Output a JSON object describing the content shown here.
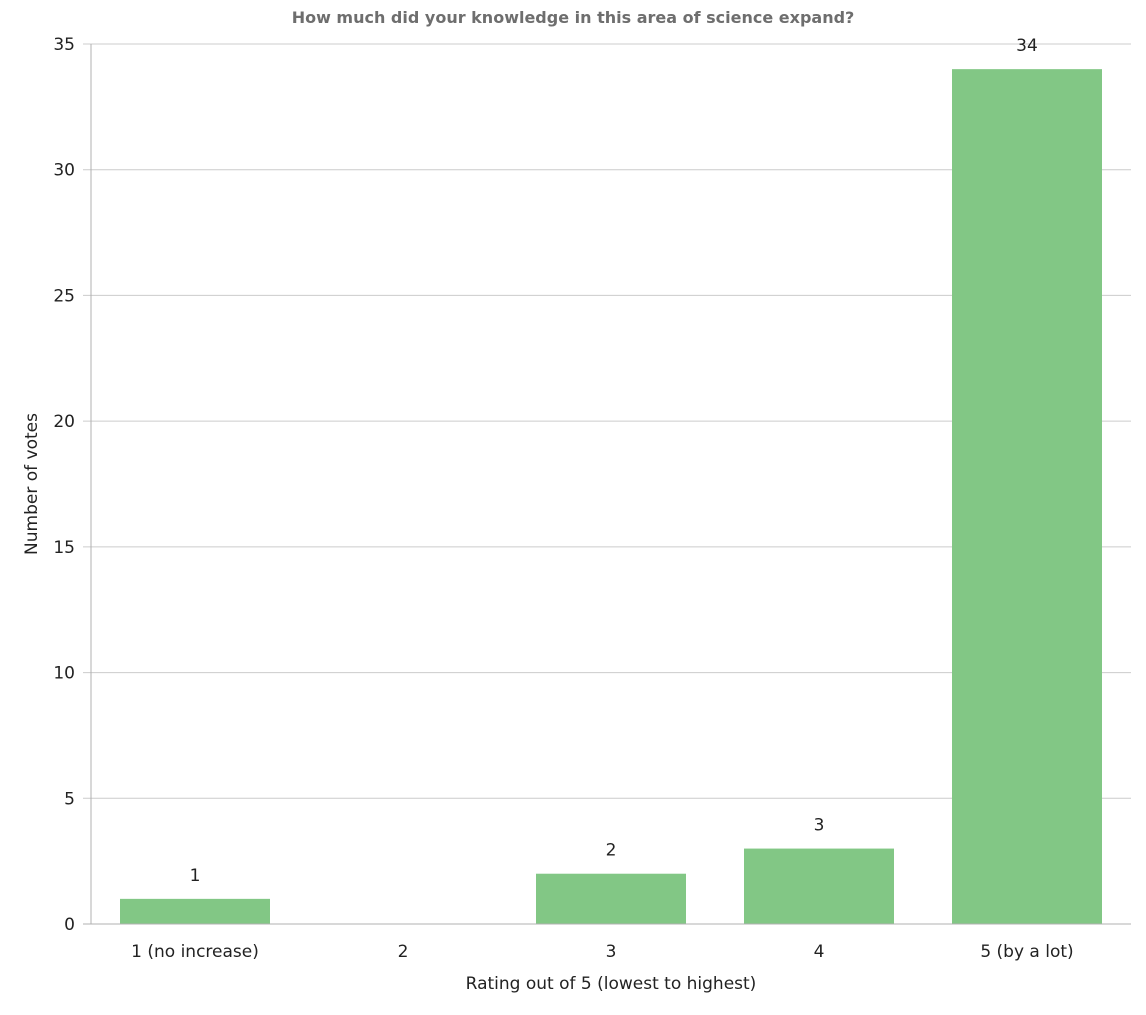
{
  "chart_data": {
    "type": "bar",
    "title": "How much did your knowledge in this area of science expand?",
    "xlabel": "Rating out of 5 (lowest to highest)",
    "ylabel": "Number of votes",
    "categories": [
      "1 (no increase)",
      "2",
      "3",
      "4",
      "5 (by a lot)"
    ],
    "values": [
      1,
      0,
      2,
      3,
      34
    ],
    "data_labels": [
      "1",
      "",
      "2",
      "3",
      "34"
    ],
    "ylim": [
      0,
      35
    ],
    "yticks": [
      0,
      5,
      10,
      15,
      20,
      25,
      30,
      35
    ],
    "grid": true,
    "bar_color": "#82c785"
  }
}
